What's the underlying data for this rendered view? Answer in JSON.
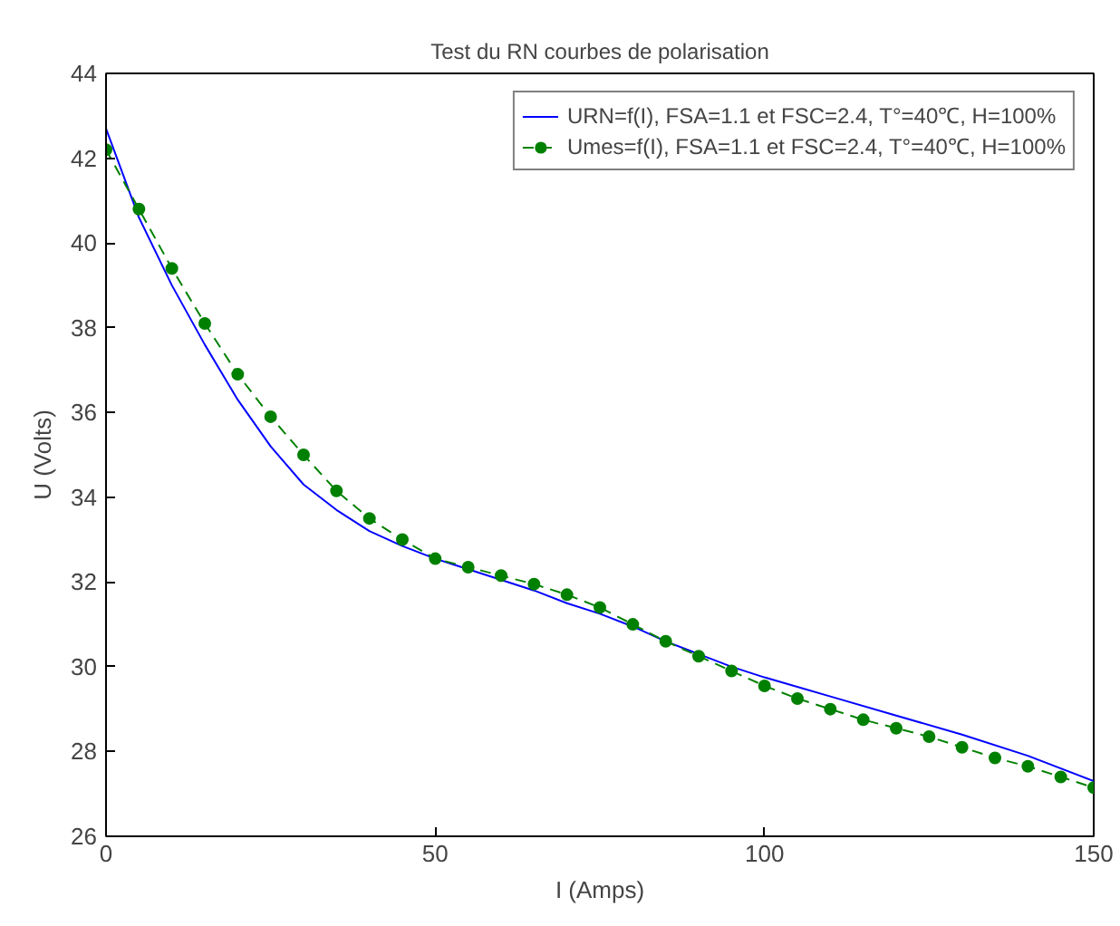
{
  "chart_data": {
    "type": "line",
    "title": "Test du RN courbes de polarisation",
    "xlabel": "I (Amps)",
    "ylabel": "U (Volts)",
    "xlim": [
      0,
      150
    ],
    "xticks": [
      0,
      50,
      100,
      150
    ],
    "ylim": [
      26,
      44
    ],
    "yticks": [
      26,
      28,
      30,
      32,
      34,
      36,
      38,
      40,
      42,
      44
    ],
    "grid": false,
    "legend": "top right",
    "series": [
      {
        "name": "URN=f(I), FSA=1.1 et FSC=2.4, T°=40℃, H=100%",
        "color": "#0000ff",
        "line_style": "solid",
        "marker": "none",
        "x": [
          0,
          5,
          10,
          15,
          20,
          25,
          30,
          35,
          40,
          45,
          50,
          55,
          60,
          65,
          70,
          75,
          80,
          85,
          90,
          95,
          100,
          110,
          120,
          130,
          140,
          150
        ],
        "values": [
          42.7,
          40.6,
          39.0,
          37.6,
          36.3,
          35.2,
          34.3,
          33.7,
          33.2,
          32.85,
          32.55,
          32.3,
          32.05,
          31.8,
          31.5,
          31.25,
          30.95,
          30.6,
          30.3,
          30.0,
          29.75,
          29.3,
          28.85,
          28.4,
          27.9,
          27.3
        ]
      },
      {
        "name": "Umes=f(I), FSA=1.1 et FSC=2.4, T°=40℃, H=100%",
        "color": "#008000",
        "line_style": "dashed",
        "marker": "circle",
        "x": [
          0,
          5,
          10,
          15,
          20,
          25,
          30,
          35,
          40,
          45,
          50,
          55,
          60,
          65,
          70,
          75,
          80,
          85,
          90,
          95,
          100,
          105,
          110,
          115,
          120,
          125,
          130,
          135,
          140,
          145,
          150
        ],
        "values": [
          42.2,
          40.8,
          39.4,
          38.1,
          36.9,
          35.9,
          35.0,
          34.15,
          33.5,
          33.0,
          32.55,
          32.35,
          32.15,
          31.95,
          31.7,
          31.4,
          31.0,
          30.6,
          30.25,
          29.9,
          29.55,
          29.25,
          29.0,
          28.75,
          28.55,
          28.35,
          28.1,
          27.85,
          27.65,
          27.4,
          27.15
        ]
      }
    ]
  }
}
